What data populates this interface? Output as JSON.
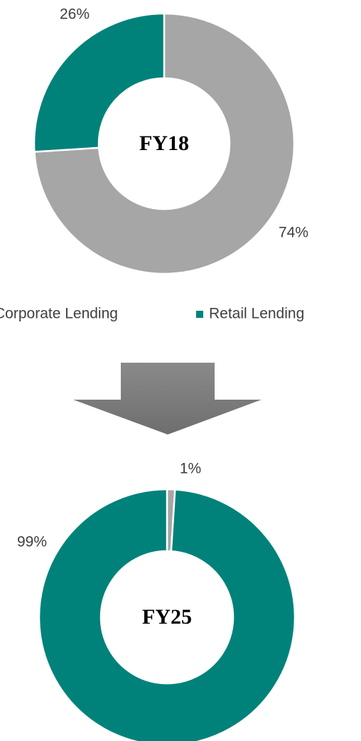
{
  "chart_data": [
    {
      "type": "donut",
      "center_label": "FY18",
      "categories": [
        "Corporate Lending",
        "Retail Lending"
      ],
      "values": [
        74,
        26
      ],
      "value_labels": [
        "74%",
        "26%"
      ],
      "colors": [
        "#a6a6a6",
        "#00827a"
      ],
      "legend": true
    },
    {
      "type": "donut",
      "center_label": "FY25",
      "values": [
        1,
        99
      ],
      "value_labels": [
        "1%",
        "99%"
      ],
      "colors": [
        "#a6a6a6",
        "#00827a"
      ],
      "legend": false
    }
  ]
}
